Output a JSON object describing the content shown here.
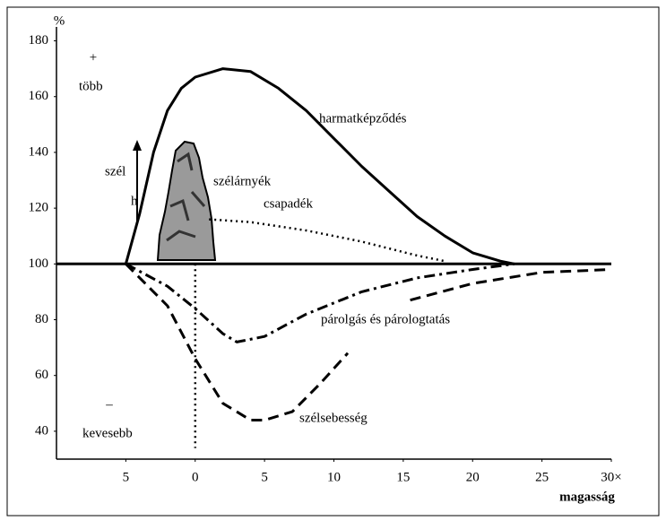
{
  "chart_data": {
    "type": "line",
    "ylabel": "%",
    "xlabel": "magasság",
    "xlim": [
      -10,
      30
    ],
    "ylim": [
      30,
      185
    ],
    "xticks": [
      {
        "value": -5,
        "label": "5"
      },
      0,
      5,
      10,
      15,
      20,
      25,
      {
        "value": 30,
        "label": "30×"
      }
    ],
    "yticks": [
      40,
      60,
      80,
      100,
      120,
      140,
      160,
      180
    ],
    "annotations": [
      "+",
      "több",
      "szél",
      "h",
      "szélárnyék",
      "–",
      "kevesebb"
    ],
    "series": [
      {
        "name": "harmatképződés",
        "color": "#000000",
        "style": "solid",
        "x": [
          -5,
          -4,
          -3,
          -2,
          -1,
          0,
          2,
          4,
          6,
          8,
          10,
          12,
          14,
          16,
          18,
          20,
          22,
          23
        ],
        "values": [
          100,
          118,
          140,
          155,
          163,
          167,
          170,
          169,
          163,
          155,
          145,
          135,
          126,
          117,
          110,
          104,
          101,
          100
        ]
      },
      {
        "name": "csapadék",
        "color": "#000000",
        "style": "dotted",
        "x": [
          1,
          4,
          8,
          12,
          16,
          18
        ],
        "values": [
          116,
          115,
          112,
          108,
          103,
          101
        ]
      },
      {
        "name": "párolgás és párologtatás",
        "color": "#000000",
        "style": "dashdot",
        "x": [
          -5,
          -2,
          0,
          2,
          3,
          5,
          8,
          12,
          16,
          20,
          23
        ],
        "values": [
          100,
          92,
          84,
          75,
          72,
          74,
          82,
          90,
          95,
          98,
          100
        ]
      },
      {
        "name": "szélsebesség",
        "color": "#000000",
        "style": "dashed",
        "x": [
          -5,
          -2,
          0,
          2,
          4,
          5,
          7,
          9,
          11,
          13,
          15.5,
          20,
          25,
          30
        ],
        "values": [
          100,
          85,
          66,
          50,
          44,
          44,
          47,
          57,
          68,
          null,
          87,
          93,
          97,
          98
        ]
      },
      {
        "color": "#000000",
        "style": "solid",
        "x": [
          -10,
          30
        ],
        "values": [
          100,
          100
        ]
      },
      {
        "color": "#000000",
        "style": "dotted",
        "x": [
          0,
          0
        ],
        "values": [
          100,
          34
        ]
      }
    ]
  }
}
